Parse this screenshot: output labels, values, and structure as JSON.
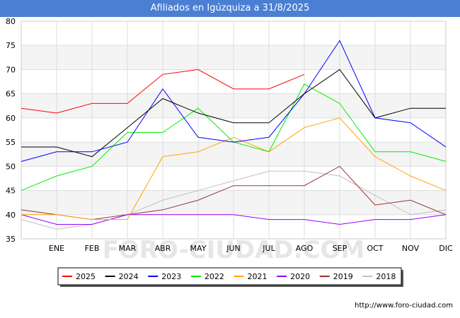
{
  "title": "Afiliados en Igúzquiza a 31/8/2025",
  "source_url": "http://www.foro-ciudad.com",
  "watermark": "FORO-CIUDAD.COM",
  "chart_data": {
    "type": "line",
    "categories": [
      "",
      "ENE",
      "FEB",
      "MAR",
      "ABR",
      "MAY",
      "JUN",
      "JUL",
      "AGO",
      "SEP",
      "OCT",
      "NOV",
      "DIC"
    ],
    "ylim": [
      35,
      80
    ],
    "yticks": [
      35,
      40,
      45,
      50,
      55,
      60,
      65,
      70,
      75,
      80
    ],
    "grid": true,
    "legend_position": "bottom",
    "series": [
      {
        "name": "2025",
        "color": "#ff0000",
        "values": [
          62,
          61,
          63,
          63,
          69,
          70,
          66,
          66,
          69,
          null,
          null,
          null,
          null
        ]
      },
      {
        "name": "2024",
        "color": "#000000",
        "values": [
          54,
          54,
          52,
          58,
          64,
          61,
          59,
          59,
          65,
          70,
          60,
          62,
          62
        ]
      },
      {
        "name": "2023",
        "color": "#0000ff",
        "values": [
          51,
          53,
          53,
          55,
          66,
          56,
          55,
          56,
          65,
          76,
          60,
          59,
          54
        ]
      },
      {
        "name": "2022",
        "color": "#00ee00",
        "values": [
          45,
          48,
          50,
          57,
          57,
          62,
          55,
          53,
          67,
          63,
          53,
          53,
          51
        ]
      },
      {
        "name": "2021",
        "color": "#ffa500",
        "values": [
          40,
          40,
          39,
          39,
          52,
          53,
          56,
          53,
          58,
          60,
          52,
          48,
          45
        ]
      },
      {
        "name": "2020",
        "color": "#9900ff",
        "values": [
          40,
          38,
          38,
          40,
          40,
          40,
          40,
          39,
          39,
          38,
          39,
          39,
          40
        ]
      },
      {
        "name": "2019",
        "color": "#993333",
        "values": [
          41,
          40,
          39,
          40,
          41,
          43,
          46,
          46,
          46,
          50,
          42,
          43,
          40
        ]
      },
      {
        "name": "2018",
        "color": "#c0c0c0",
        "values": [
          39,
          37,
          38,
          40,
          43,
          45,
          47,
          49,
          49,
          48,
          44,
          40,
          41
        ]
      }
    ]
  }
}
